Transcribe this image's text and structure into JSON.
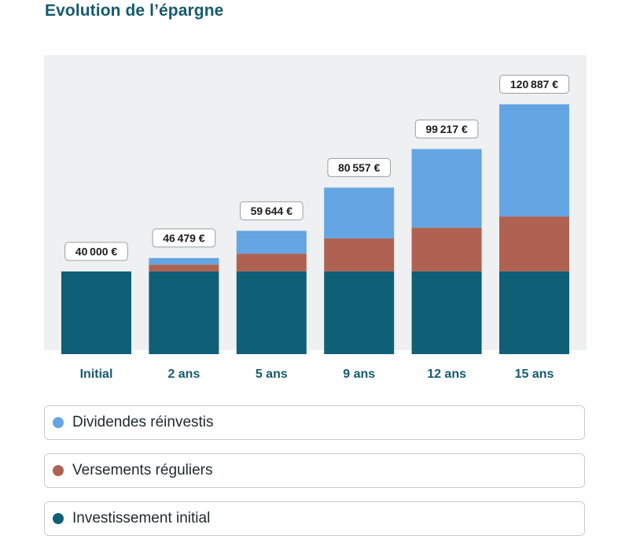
{
  "title": "Evolution de l’épargne",
  "chart_data": {
    "type": "bar",
    "stacked": true,
    "title": "Evolution de l’épargne",
    "categories": [
      "Initial",
      "2 ans",
      "5 ans",
      "9 ans",
      "12 ans",
      "15 ans"
    ],
    "series": [
      {
        "name": "Investissement initial",
        "color": "#0f5f77",
        "values": [
          40000,
          40000,
          40000,
          40000,
          40000,
          40000
        ]
      },
      {
        "name": "Versements réguliers",
        "color": "#b06252",
        "values": [
          0,
          3300,
          8600,
          16000,
          21200,
          26600
        ]
      },
      {
        "name": "Dividendes réinvestis",
        "color": "#64a5e3",
        "values": [
          0,
          3179,
          11044,
          24557,
          38017,
          54287
        ]
      }
    ],
    "totals": [
      40000,
      46479,
      59644,
      80557,
      99217,
      120887
    ],
    "total_labels": [
      "40 000 €",
      "46 479 €",
      "59 644 €",
      "80 557 €",
      "99 217 €",
      "120 887 €"
    ],
    "ylim": [
      0,
      120887
    ],
    "grid": false,
    "legend": "bottom"
  },
  "legend": [
    {
      "label": "Dividendes réinvestis",
      "color": "#64a5e3"
    },
    {
      "label": "Versements réguliers",
      "color": "#b06252"
    },
    {
      "label": "Investissement initial",
      "color": "#0f5f77"
    }
  ]
}
